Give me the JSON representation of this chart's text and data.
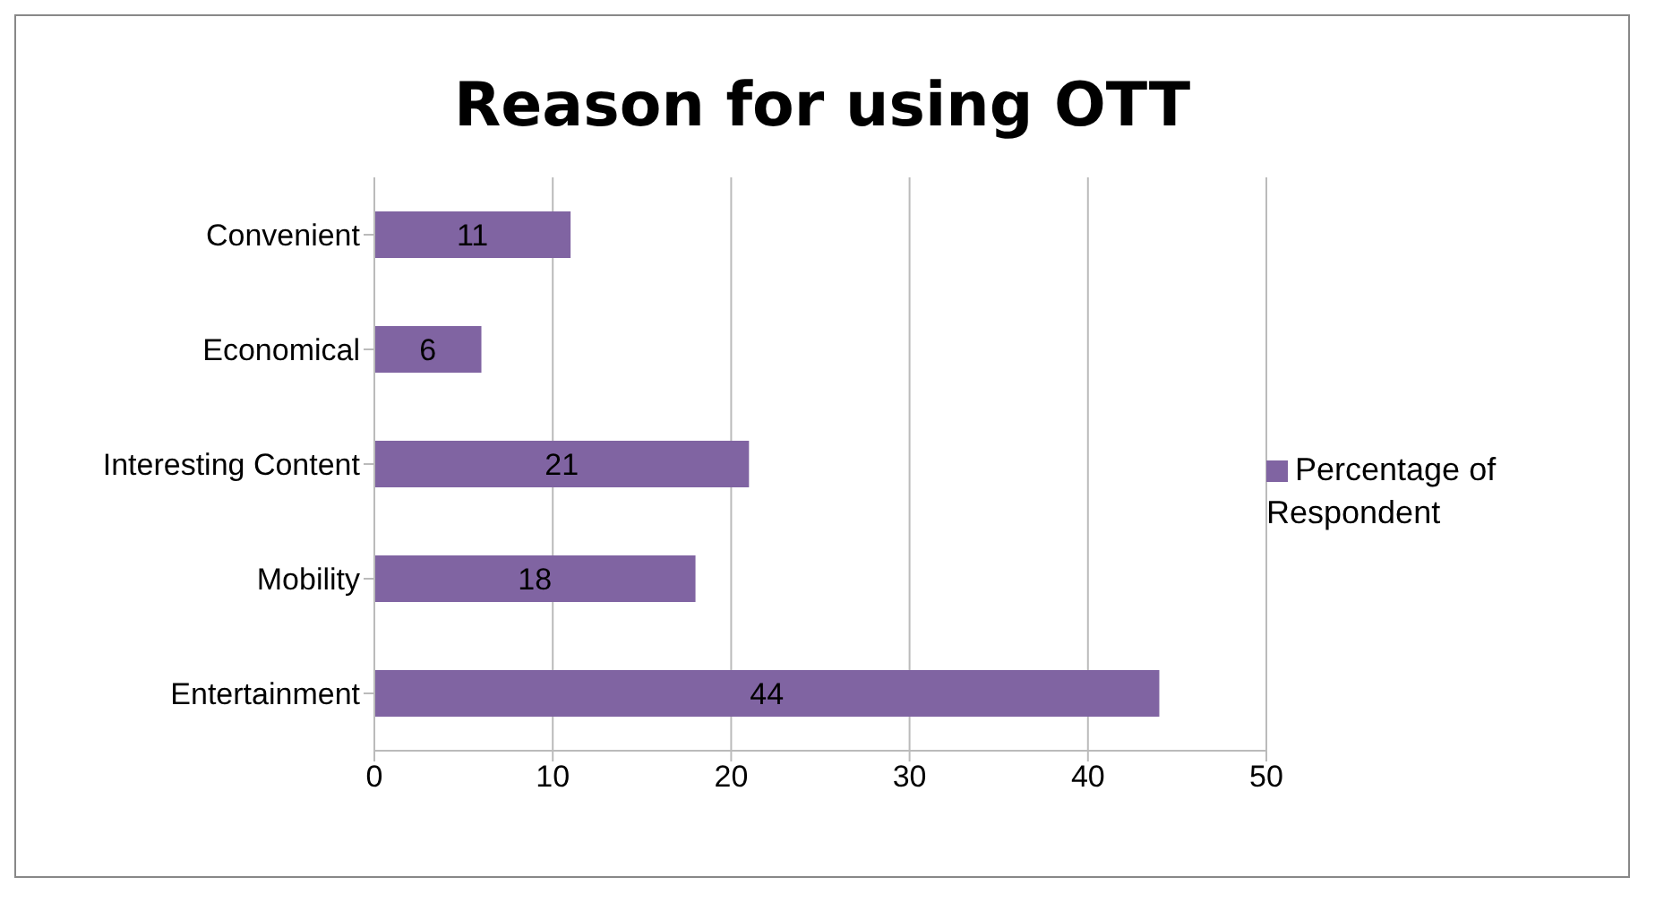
{
  "chart_data": {
    "type": "bar",
    "orientation": "horizontal",
    "title": "Reason for using OTT",
    "categories": [
      "Convenient",
      "Economical",
      "Interesting Content",
      "Mobility",
      "Entertainment"
    ],
    "series": [
      {
        "name": "Percentage of Respondent",
        "color": "#8064a2",
        "values": [
          11,
          6,
          21,
          18,
          44
        ]
      }
    ],
    "xlim": [
      0,
      50
    ],
    "xticks": [
      0,
      10,
      20,
      30,
      40,
      50
    ],
    "grid": "x",
    "legend": "right",
    "data_labels": true
  }
}
